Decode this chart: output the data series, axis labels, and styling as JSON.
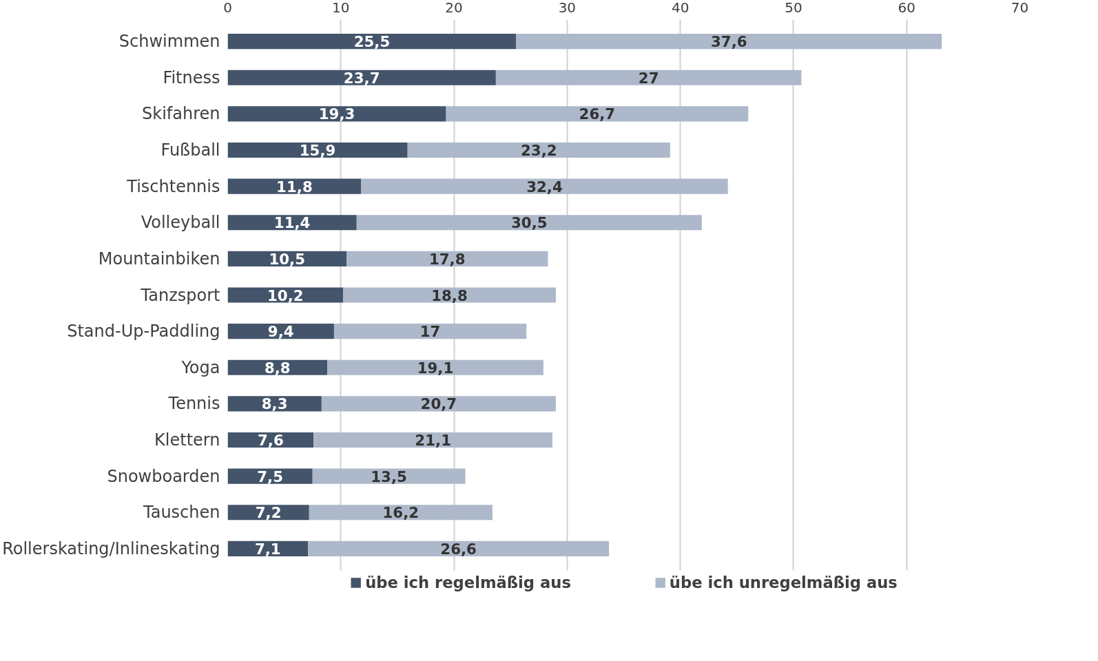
{
  "chart_data": {
    "type": "bar",
    "orientation": "horizontal",
    "stacked": true,
    "categories": [
      "Schwimmen",
      "Fitness",
      "Skifahren",
      "Fußball",
      "Tischtennis",
      "Volleyball",
      "Mountainbiken",
      "Tanzsport",
      "Stand-Up-Paddling",
      "Yoga",
      "Tennis",
      "Klettern",
      "Snowboarden",
      "Tauschen",
      "Rollerskating/Inlineskating"
    ],
    "series": [
      {
        "name": "übe ich regelmäßig aus",
        "color": "#44546a",
        "values": [
          25.5,
          23.7,
          19.3,
          15.9,
          11.8,
          11.4,
          10.5,
          10.2,
          9.4,
          8.8,
          8.3,
          7.6,
          7.5,
          7.2,
          7.1
        ],
        "value_labels": [
          "25,5",
          "23,7",
          "19,3",
          "15,9",
          "11,8",
          "11,4",
          "10,5",
          "10,2",
          "9,4",
          "8,8",
          "8,3",
          "7,6",
          "7,5",
          "7,2",
          "7,1"
        ]
      },
      {
        "name": "übe ich unregelmäßig aus",
        "color": "#adb9ca",
        "values": [
          37.6,
          27,
          26.7,
          23.2,
          32.4,
          30.5,
          17.8,
          18.8,
          17,
          19.1,
          20.7,
          21.1,
          13.5,
          16.2,
          26.6
        ],
        "value_labels": [
          "37,6",
          "27",
          "26,7",
          "23,2",
          "32,4",
          "30,5",
          "17,8",
          "18,8",
          "17",
          "19,1",
          "20,7",
          "21,1",
          "13,5",
          "16,2",
          "26,6"
        ]
      }
    ],
    "xlim": [
      0,
      70
    ],
    "xticks": [
      0,
      10,
      20,
      30,
      40,
      50,
      60,
      70
    ],
    "grid": "x",
    "legend": "bottom"
  }
}
